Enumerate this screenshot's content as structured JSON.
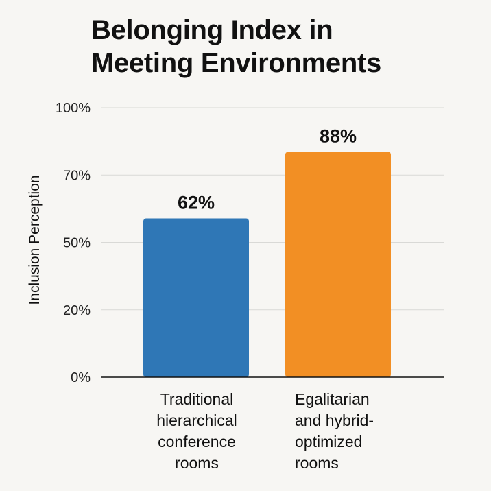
{
  "chart_data": {
    "type": "bar",
    "title": [
      "Belonging Index in",
      "Meeting Environments"
    ],
    "xlabel": "",
    "ylabel": "Inclusion Perception",
    "ylim": [
      0,
      100
    ],
    "yticks": [
      "0%",
      "20%",
      "50%",
      "70%",
      "100%"
    ],
    "grid": true,
    "categories": [
      [
        "Traditional",
        "hierarchical",
        "conference",
        "rooms"
      ],
      [
        "Egalitarian",
        "and hybrid-",
        "optimized",
        "rooms"
      ]
    ],
    "values": [
      62,
      88
    ],
    "data_labels": [
      "62%",
      "88%"
    ],
    "colors": [
      "#2f77b6",
      "#f28f24"
    ]
  }
}
